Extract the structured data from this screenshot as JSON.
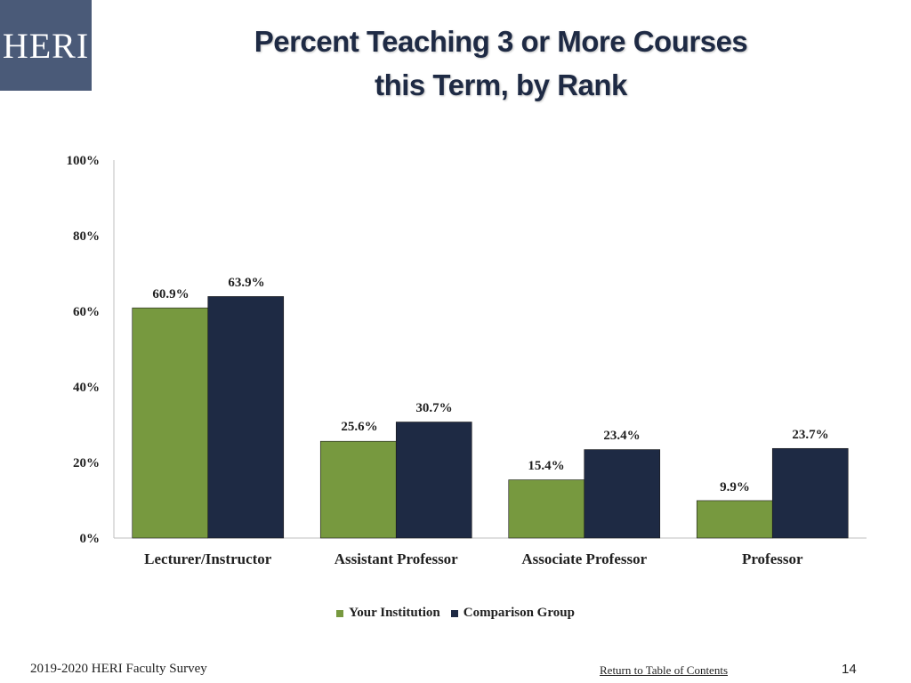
{
  "logo": {
    "text": "HERI",
    "bg": "#4a5a78"
  },
  "title": {
    "line1": "Percent Teaching 3 or More Courses",
    "line2": "this Term, by Rank"
  },
  "chart_data": {
    "type": "bar",
    "categories": [
      "Lecturer/Instructor",
      "Assistant Professor",
      "Associate Professor",
      "Professor"
    ],
    "series": [
      {
        "name": "Your Institution",
        "color": "#77993f",
        "values": [
          60.9,
          25.6,
          15.4,
          9.9
        ],
        "labels": [
          "60.9%",
          "25.6%",
          "15.4%",
          "9.9%"
        ]
      },
      {
        "name": "Comparison Group",
        "color": "#1e2a44",
        "values": [
          63.9,
          30.7,
          23.4,
          23.7
        ],
        "labels": [
          "63.9%",
          "30.7%",
          "23.4%",
          "23.7%"
        ]
      }
    ],
    "ylim": [
      0,
      100
    ],
    "yticks": [
      0,
      20,
      40,
      60,
      80,
      100
    ],
    "ytick_labels": [
      "0%",
      "20%",
      "40%",
      "60%",
      "80%",
      "100%"
    ],
    "grid": false,
    "legend": "bottom-center"
  },
  "footer": {
    "survey": "2019-2020 HERI Faculty Survey",
    "link": "Return to Table of Contents",
    "page": "14"
  }
}
